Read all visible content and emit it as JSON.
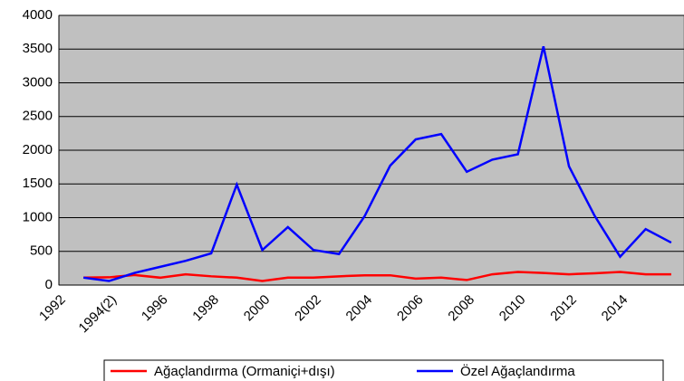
{
  "chart_data": {
    "type": "line",
    "categories": [
      "1992",
      null,
      "1994(2)",
      null,
      "1996",
      null,
      "1998",
      null,
      "2000",
      null,
      "2002",
      null,
      "2004",
      null,
      "2006",
      null,
      "2008",
      null,
      "2010",
      null,
      "2012",
      null,
      "2014",
      null
    ],
    "series": [
      {
        "name": "Ağaçlandırma (Ormaniçi+dışı)",
        "color": "#ff0000",
        "values": [
          110,
          115,
          150,
          110,
          160,
          130,
          110,
          60,
          110,
          110,
          130,
          145,
          145,
          95,
          110,
          75,
          160,
          195,
          180,
          160,
          175,
          195,
          160,
          160
        ]
      },
      {
        "name": "Özel Ağaçlandırma",
        "color": "#0000ff",
        "values": [
          110,
          60,
          180,
          270,
          360,
          470,
          1490,
          520,
          860,
          520,
          460,
          1020,
          1770,
          2160,
          2240,
          1680,
          1860,
          1940,
          3540,
          1760,
          1030,
          420,
          830,
          630
        ]
      }
    ],
    "ylim": [
      0,
      4000
    ],
    "yticks": [
      0,
      500,
      1000,
      1500,
      2000,
      2500,
      3000,
      3500,
      4000
    ],
    "grid": true,
    "legend": "bottom",
    "plot_background": "#c0c0c0"
  }
}
